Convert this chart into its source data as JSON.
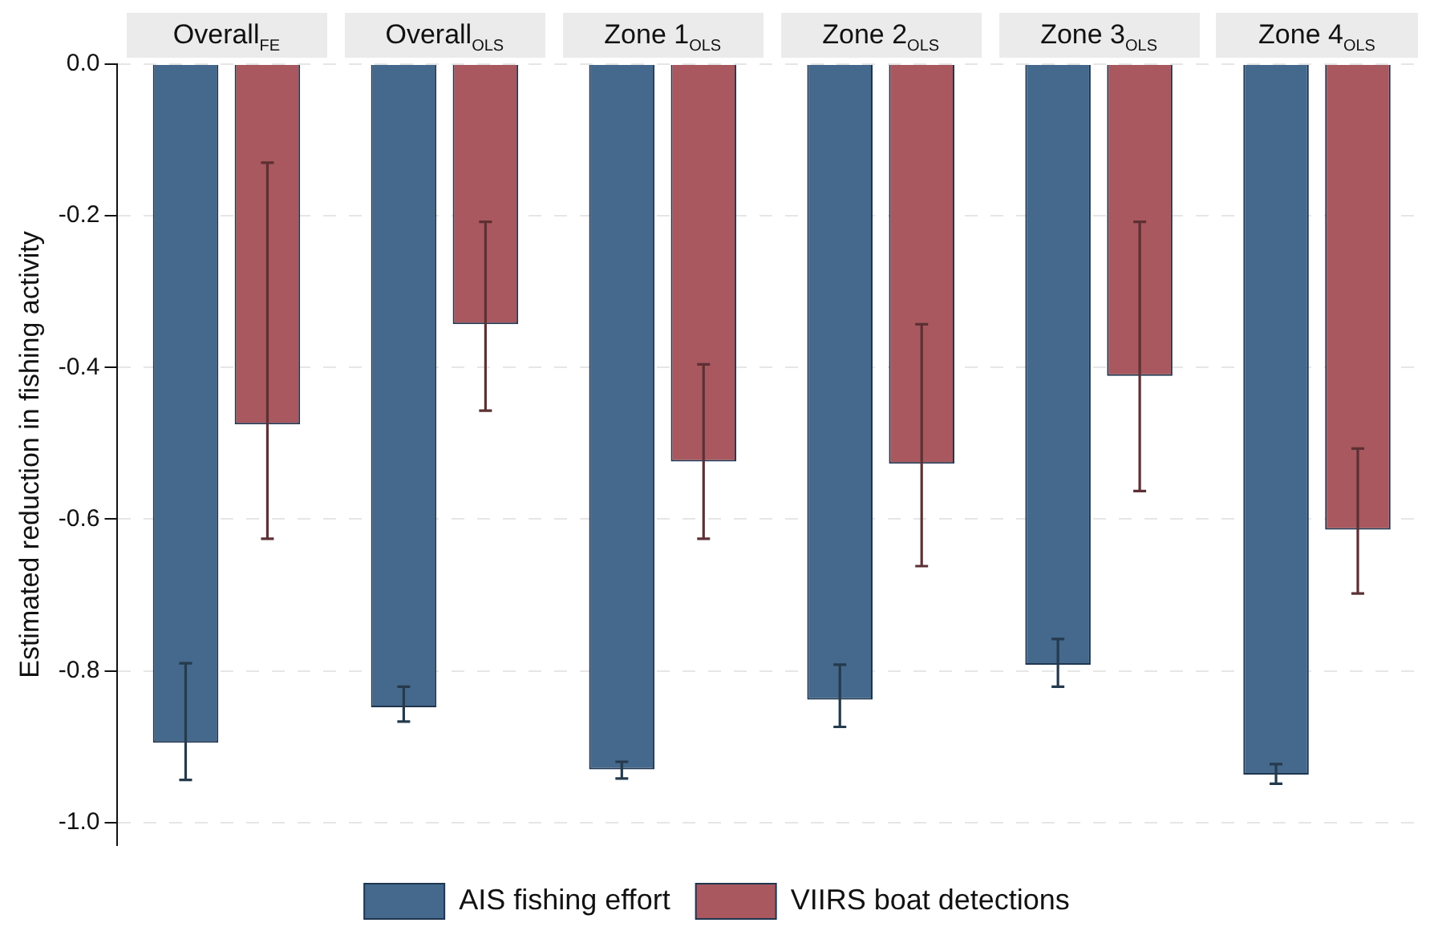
{
  "chart_data": {
    "type": "bar",
    "ylabel": "Estimated reduction in fishing activity",
    "categories": [
      "Overall$_{FE}$",
      "Overall$_{OLS}$",
      "Zone 1$_{OLS}$",
      "Zone 2$_{OLS}$",
      "Zone 3$_{OLS}$",
      "Zone 4$_{OLS}$"
    ],
    "series": [
      {
        "name": "AIS fishing effort",
        "color": "#44698c",
        "values": [
          -0.895,
          -0.848,
          -0.93,
          -0.838,
          -0.792,
          -0.937
        ],
        "errors": [
          [
            -0.944,
            -0.79
          ],
          [
            -0.867,
            -0.821
          ],
          [
            -0.942,
            -0.92
          ],
          [
            -0.874,
            -0.792
          ],
          [
            -0.821,
            -0.758
          ],
          [
            -0.949,
            -0.923
          ]
        ]
      },
      {
        "name": "VIIRS boat detections",
        "color": "#a8585e",
        "values": [
          -0.475,
          -0.343,
          -0.524,
          -0.527,
          -0.411,
          -0.614
        ],
        "errors": [
          [
            -0.626,
            -0.13
          ],
          [
            -0.457,
            -0.208
          ],
          [
            -0.626,
            -0.396
          ],
          [
            -0.662,
            -0.343
          ],
          [
            -0.563,
            -0.208
          ],
          [
            -0.698,
            -0.507
          ]
        ]
      }
    ],
    "ylim": [
      -1.03,
      0
    ],
    "yticks": [
      {
        "value": -1,
        "label": "-1.0"
      },
      {
        "value": -0.8,
        "label": "-0.8"
      },
      {
        "value": -0.6,
        "label": "-0.6"
      },
      {
        "value": -0.4,
        "label": "-0.4"
      },
      {
        "value": -0.2,
        "label": "-0.2"
      },
      {
        "value": 0,
        "label": "0.0"
      }
    ],
    "grid": "y",
    "legend": "bottom"
  }
}
